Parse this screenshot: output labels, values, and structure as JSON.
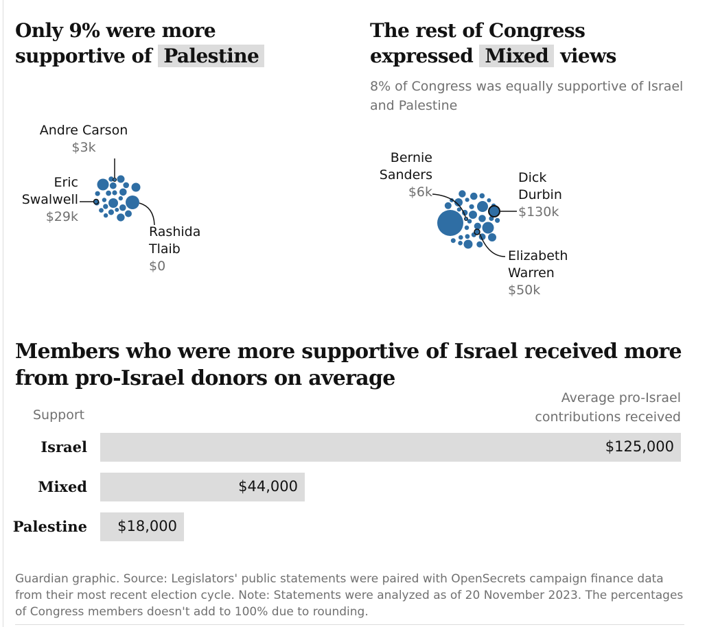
{
  "colors": {
    "bubble": "#2f6ea4",
    "bar": "#dcdcdc",
    "muted": "#707070"
  },
  "palestine_panel": {
    "title_line1": "Only 9% were more",
    "title_line2": "supportive of",
    "title_highlight": "Palestine",
    "annotations": {
      "carson": {
        "name": "Andre Carson",
        "amount": "$3k"
      },
      "swalwell": {
        "name_line1": "Eric",
        "name_line2": "Swalwell",
        "amount": "$29k"
      },
      "tlaib": {
        "name_line1": "Rashida",
        "name_line2": "Tlaib",
        "amount": "$0"
      }
    }
  },
  "mixed_panel": {
    "title_line1": "The rest of Congress",
    "title_pre": "expressed",
    "title_highlight": "Mixed",
    "title_post": "views",
    "subtitle": "8% of Congress was equally supportive of Israel and Palestine",
    "annotations": {
      "sanders": {
        "name_line1": "Bernie",
        "name_line2": "Sanders",
        "amount": "$6k"
      },
      "durbin": {
        "name_line1": "Dick",
        "name_line2": "Durbin",
        "amount": "$130k"
      },
      "warren": {
        "name_line1": "Elizabeth",
        "name_line2": "Warren",
        "amount": "$50k"
      }
    }
  },
  "bar_section": {
    "title": "Members who were more supportive of Israel received more from pro-Israel donors on average",
    "axis_left": "Support",
    "axis_right_line1": "Average pro-Israel",
    "axis_right_line2": "contributions received"
  },
  "chart_data": {
    "type": "bar",
    "orientation": "horizontal",
    "title": "Members who were more supportive of Israel received more from pro-Israel donors on average",
    "xlabel": "Average pro-Israel contributions received",
    "ylabel": "Support",
    "categories": [
      "Israel",
      "Mixed",
      "Palestine"
    ],
    "values": [
      125000,
      44000,
      18000
    ],
    "value_labels": [
      "$125,000",
      "$44,000",
      "$18,000"
    ],
    "xlim": [
      0,
      125000
    ]
  },
  "footer": "Guardian graphic. Source: Legislators' public statements were paired with OpenSecrets campaign finance data from their most recent election cycle. Note: Statements were analyzed as of 20 November 2023. The percentages of Congress members doesn't add to 100% due to rounding."
}
